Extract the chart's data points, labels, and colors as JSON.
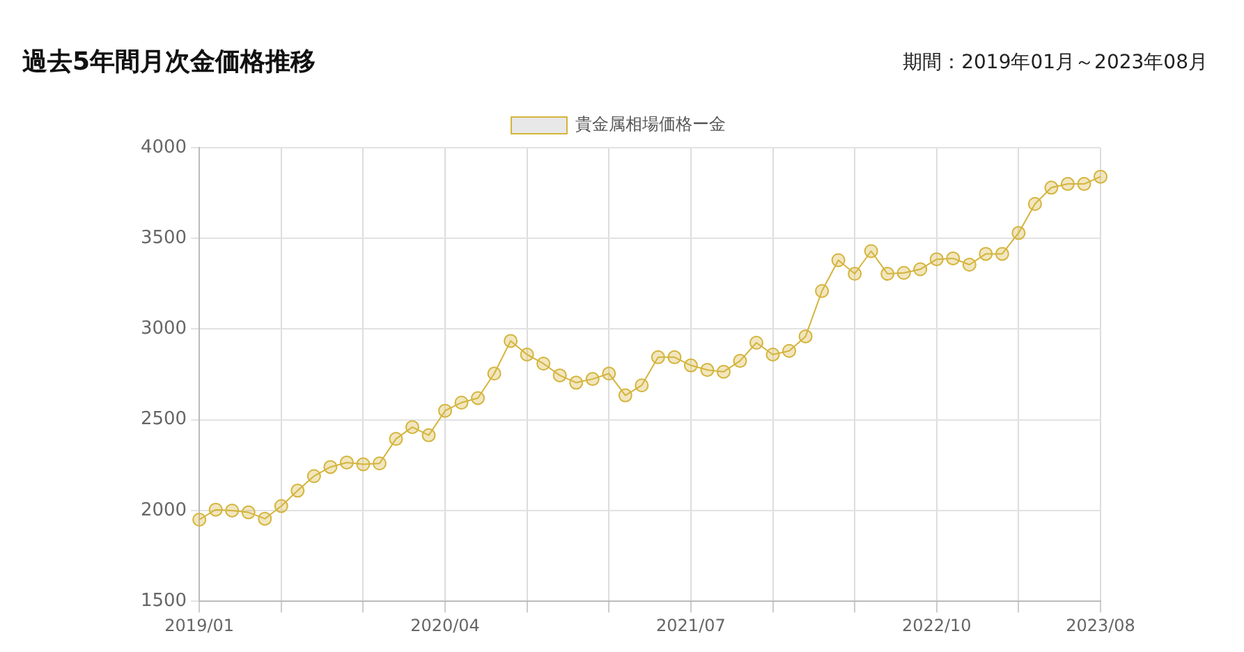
{
  "chart_data": {
    "type": "line",
    "title": "過去5年間月次金価格推移",
    "subtitle": "期間：2019年01月～2023年08月",
    "categories": [
      "2019/01",
      null,
      null,
      null,
      null,
      null,
      null,
      null,
      null,
      null,
      null,
      null,
      null,
      null,
      null,
      "2020/04",
      null,
      null,
      null,
      null,
      null,
      null,
      null,
      null,
      null,
      null,
      null,
      null,
      null,
      null,
      "2021/07",
      null,
      null,
      null,
      null,
      null,
      null,
      null,
      null,
      null,
      null,
      null,
      null,
      null,
      null,
      "2022/10",
      null,
      null,
      null,
      null,
      null,
      null,
      null,
      null,
      null,
      "2023/08"
    ],
    "series": [
      {
        "name": "貴金属相場価格ー金",
        "color": "#d4b43c",
        "values": [
          1950,
          2005,
          2000,
          1990,
          1955,
          2025,
          2110,
          2190,
          2240,
          2265,
          2255,
          2260,
          2395,
          2460,
          2415,
          2550,
          2595,
          2620,
          2755,
          2935,
          2860,
          2810,
          2745,
          2705,
          2725,
          2755,
          2635,
          2690,
          2845,
          2845,
          2800,
          2775,
          2765,
          2825,
          2925,
          2860,
          2880,
          2960,
          3210,
          3380,
          3305,
          3430,
          3305,
          3310,
          3330,
          3385,
          3390,
          3355,
          3415,
          3415,
          3530,
          3690,
          3780,
          3800,
          3800,
          3840
        ]
      }
    ],
    "ylim": [
      1500,
      4000
    ],
    "yticks": [
      1500,
      2000,
      2500,
      3000,
      3500,
      4000
    ],
    "grid": true,
    "legend": "top",
    "marker": "circle",
    "line_style": "solid"
  }
}
